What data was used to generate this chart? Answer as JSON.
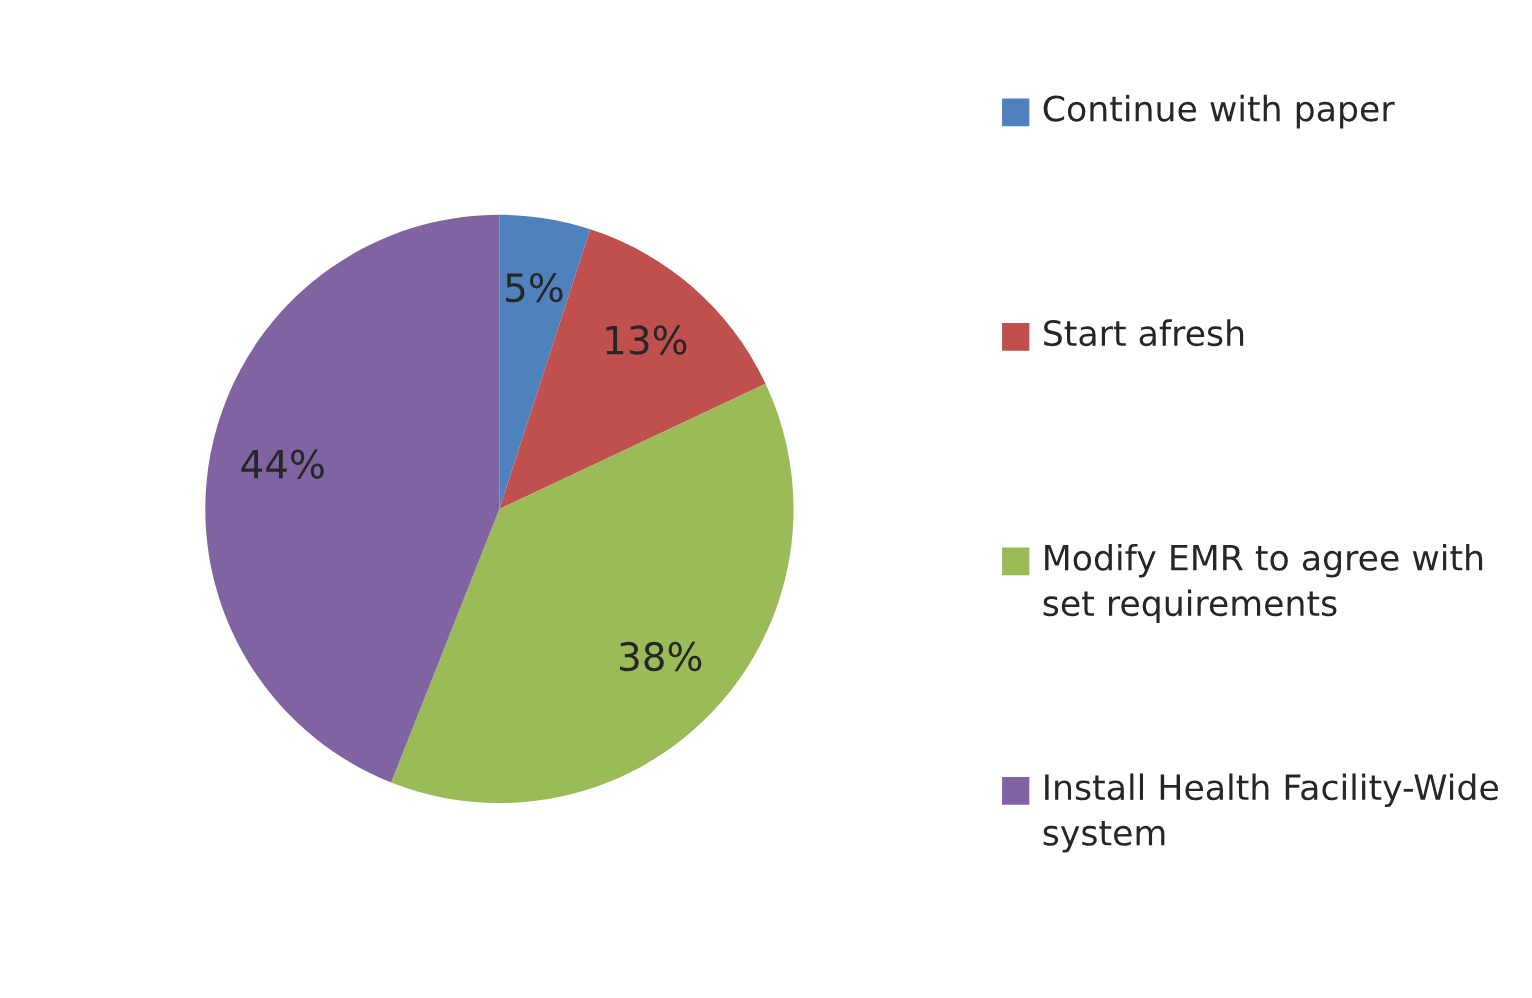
{
  "chart_data": {
    "type": "pie",
    "categories": [
      "Continue with paper",
      "Start afresh",
      "Modify EMR to agree with set requirements",
      "Install Health Facility-Wide system"
    ],
    "values": [
      5,
      13,
      38,
      44
    ],
    "colors": [
      "#4f81bd",
      "#c0504d",
      "#9bbb59",
      "#8064a2"
    ],
    "value_labels": [
      "5%",
      "13%",
      "38%",
      "44%"
    ],
    "legend": "right"
  }
}
